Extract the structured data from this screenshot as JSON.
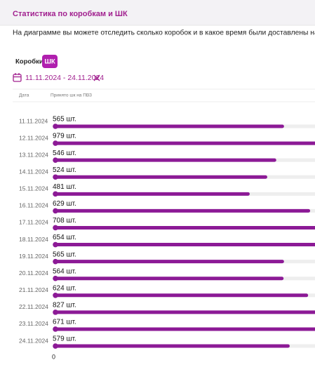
{
  "header": {
    "title": "Статистика по коробкам и ШК"
  },
  "description": "На диаграмме вы можете отследить сколько коробок и в какое время были доставлены на ПВЗ.",
  "tabs": [
    "Коробки",
    "ШК"
  ],
  "date_range": "11.11.2024 - 24.11.2024",
  "chart_data": {
    "type": "bar",
    "orientation": "horizontal",
    "ylabel": "Дата",
    "xlabel": "Принято шк на ПВЗ",
    "categories": [
      "11.11.2024",
      "12.11.2024",
      "13.11.2024",
      "14.11.2024",
      "15.11.2024",
      "16.11.2024",
      "17.11.2024",
      "18.11.2024",
      "19.11.2024",
      "20.11.2024",
      "21.11.2024",
      "22.11.2024",
      "23.11.2024",
      "24.11.2024"
    ],
    "values": [
      565,
      979,
      546,
      524,
      481,
      629,
      708,
      654,
      565,
      564,
      624,
      827,
      671,
      579
    ],
    "value_labels": [
      "565 шт.",
      "979 шт.",
      "546 шт.",
      "524 шт.",
      "481 шт.",
      "629 шт.",
      "708 шт.",
      "654 шт.",
      "565 шт.",
      "564 шт.",
      "624 шт.",
      "827 шт.",
      "671 шт.",
      "579 шт."
    ],
    "color": "#8c1a96",
    "xlim": [
      0,
      1000
    ],
    "xticks": [
      0
    ]
  }
}
